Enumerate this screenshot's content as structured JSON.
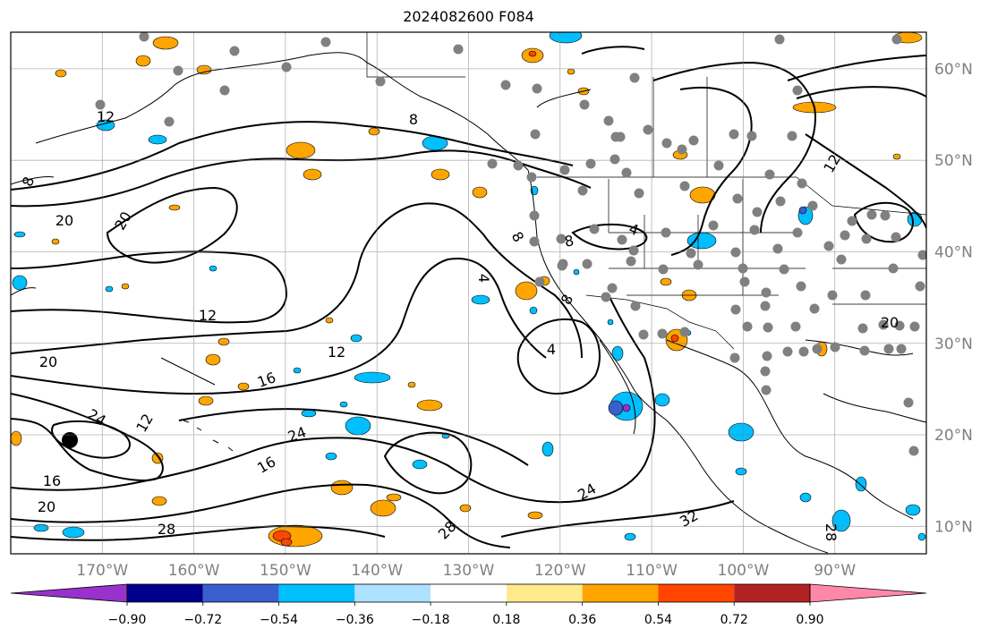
{
  "title": "2024082600 F084",
  "map": {
    "projection": "cylindrical",
    "lon_range_deg": [
      -180,
      -80
    ],
    "lat_range_deg": [
      7,
      64
    ],
    "lon_ticks": [
      "170°W",
      "160°W",
      "150°W",
      "140°W",
      "130°W",
      "120°W",
      "110°W",
      "100°W",
      "90°W"
    ],
    "lat_ticks": [
      "10°N",
      "20°N",
      "30°N",
      "40°N",
      "50°N",
      "60°N"
    ],
    "grid": true,
    "contour_labels": [
      {
        "text": "8"
      },
      {
        "text": "8"
      },
      {
        "text": "12"
      },
      {
        "text": "20"
      },
      {
        "text": "20"
      },
      {
        "text": "12"
      },
      {
        "text": "20"
      },
      {
        "text": "12"
      },
      {
        "text": "16"
      },
      {
        "text": "24"
      },
      {
        "text": "12"
      },
      {
        "text": "24"
      },
      {
        "text": "16"
      },
      {
        "text": "16"
      },
      {
        "text": "20"
      },
      {
        "text": "28"
      },
      {
        "text": "28"
      },
      {
        "text": "24"
      },
      {
        "text": "32"
      },
      {
        "text": "28"
      },
      {
        "text": "4"
      },
      {
        "text": "4"
      },
      {
        "text": "8"
      },
      {
        "text": "8"
      },
      {
        "text": "4"
      },
      {
        "text": "8"
      },
      {
        "text": "20"
      },
      {
        "text": "12"
      }
    ],
    "colors": {
      "contour": "#000000",
      "station_dot": "#808080",
      "grid": "#808080",
      "coastline": "#000000"
    }
  },
  "colorbar": {
    "ticks": [
      "−0.90",
      "−0.72",
      "−0.54",
      "−0.36",
      "−0.18",
      "0.18",
      "0.36",
      "0.54",
      "0.72",
      "0.90"
    ],
    "colors": [
      "#9932CC",
      "#00008B",
      "#3A5FCD",
      "#00BFFF",
      "#ADE1FF",
      "#FFFFFF",
      "#FFEB8C",
      "#FFA500",
      "#FF4500",
      "#B22222",
      "#FF88AA"
    ]
  }
}
